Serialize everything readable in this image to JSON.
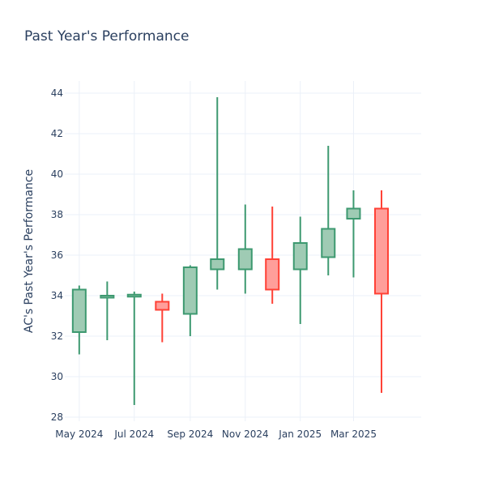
{
  "chart_data": {
    "type": "candlestick",
    "title": "Past Year's Performance",
    "xlabel": "",
    "ylabel": "AC's Past Year's Performance",
    "ylim": [
      27.8,
      44.6
    ],
    "yticks": [
      28,
      30,
      32,
      34,
      36,
      38,
      40,
      42,
      44
    ],
    "xticks": [
      {
        "label": "May 2024",
        "date": "2024-05-01"
      },
      {
        "label": "Jul 2024",
        "date": "2024-07-01"
      },
      {
        "label": "Sep 2024",
        "date": "2024-09-01"
      },
      {
        "label": "Nov 2024",
        "date": "2024-11-01"
      },
      {
        "label": "Jan 2025",
        "date": "2025-01-01"
      },
      {
        "label": "Mar 2025",
        "date": "2025-03-01"
      }
    ],
    "xrange": [
      "2024-04-15",
      "2025-05-15"
    ],
    "grid": true,
    "colors": {
      "increasing_line": "#3d9970",
      "increasing_fill": "#9fcbb4",
      "decreasing_line": "#ff4136",
      "decreasing_fill": "#ff9e9a"
    },
    "candles": [
      {
        "date": "2024-05-01",
        "open": 32.2,
        "high": 34.5,
        "low": 31.1,
        "close": 34.3
      },
      {
        "date": "2024-06-01",
        "open": 33.9,
        "high": 34.7,
        "low": 31.8,
        "close": 34.0
      },
      {
        "date": "2024-07-01",
        "open": 33.95,
        "high": 34.2,
        "low": 28.6,
        "close": 34.05
      },
      {
        "date": "2024-08-01",
        "open": 33.7,
        "high": 34.1,
        "low": 31.7,
        "close": 33.3
      },
      {
        "date": "2024-09-01",
        "open": 33.1,
        "high": 35.5,
        "low": 32.0,
        "close": 35.4
      },
      {
        "date": "2024-10-01",
        "open": 35.3,
        "high": 43.8,
        "low": 34.3,
        "close": 35.8
      },
      {
        "date": "2024-11-01",
        "open": 35.3,
        "high": 38.5,
        "low": 34.1,
        "close": 36.3
      },
      {
        "date": "2024-12-01",
        "open": 35.8,
        "high": 38.4,
        "low": 33.6,
        "close": 34.3
      },
      {
        "date": "2025-01-01",
        "open": 35.3,
        "high": 37.9,
        "low": 32.6,
        "close": 36.6
      },
      {
        "date": "2025-02-01",
        "open": 35.9,
        "high": 41.4,
        "low": 35.0,
        "close": 37.3
      },
      {
        "date": "2025-03-01",
        "open": 37.8,
        "high": 39.2,
        "low": 34.9,
        "close": 38.3
      },
      {
        "date": "2025-04-01",
        "open": 38.3,
        "high": 39.2,
        "low": 29.2,
        "close": 34.1
      }
    ]
  }
}
